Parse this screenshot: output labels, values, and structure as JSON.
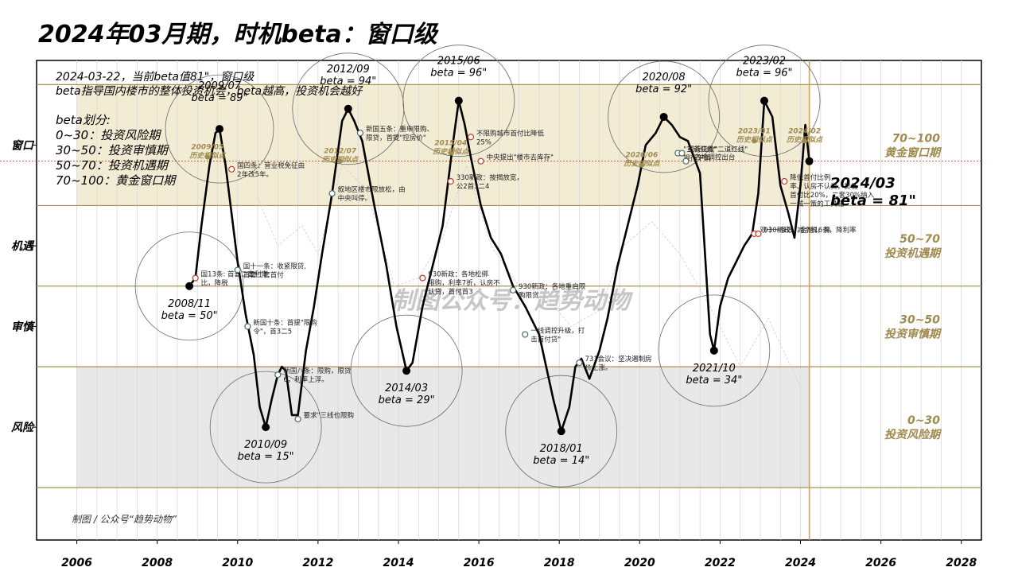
{
  "title": "2024年03月期，时机beta：窗口级",
  "chart_data": {
    "type": "line",
    "title": "2024年03月期，时机beta：窗口级",
    "xlim": [
      2005,
      2028.5
    ],
    "ylim": [
      -13,
      106
    ],
    "x_ticks": [
      "2006",
      "2008",
      "2010",
      "2012",
      "2014",
      "2016",
      "2018",
      "2020",
      "2022",
      "2024",
      "2026",
      "2028"
    ],
    "x_tick_values": [
      2006,
      2008,
      2010,
      2012,
      2014,
      2016,
      2018,
      2020,
      2022,
      2024,
      2026,
      2028
    ],
    "y_tick_labels": [
      {
        "label": "窗口",
        "value": 85
      },
      {
        "label": "机遇",
        "value": 60
      },
      {
        "label": "审慎",
        "value": 40
      },
      {
        "label": "风险",
        "value": 15
      }
    ],
    "bands": [
      {
        "from": 70,
        "to": 100,
        "label": "70~100",
        "name": "黄金窗口期",
        "color": "#f3ecd5"
      },
      {
        "from": 50,
        "to": 70,
        "label": "50~70",
        "name": "投资机遇期",
        "color": "#ffffff"
      },
      {
        "from": 30,
        "to": 50,
        "label": "30~50",
        "name": "投资审慎期",
        "color": "#ffffff"
      },
      {
        "from": 0,
        "to": 30,
        "label": "0~30",
        "name": "投资风险期",
        "color": "#e8e8e8"
      }
    ],
    "band_lines": [
      0,
      30,
      50,
      70,
      100
    ],
    "current_level": 81,
    "current_x": 2024.22,
    "info": {
      "line1": "2024-03-22，当前beta值81\"，窗口级",
      "line2": "beta指导国内楼市的整体投资机会，beta越高，投资机会越好",
      "line3": "beta划分:",
      "line4": "0~30：投资风险期",
      "line5": "30~50：投资审慎期",
      "line6": "50~70：投资机遇期",
      "line7": "70~100：黄金窗口期"
    },
    "watermark": "制图公众号：趋势动物",
    "credit": "制图 / 公众号“趋势动物”",
    "current_label": {
      "date": "2024/03",
      "beta": "beta = 81\""
    },
    "series": [
      {
        "values": [
          [
            2008.8,
            50
          ],
          [
            2008.95,
            52
          ],
          [
            2009.1,
            65
          ],
          [
            2009.3,
            80
          ],
          [
            2009.45,
            88
          ],
          [
            2009.55,
            89
          ],
          [
            2009.7,
            80
          ],
          [
            2009.85,
            68
          ],
          [
            2010.0,
            56
          ],
          [
            2010.2,
            43
          ],
          [
            2010.4,
            33
          ],
          [
            2010.55,
            20
          ],
          [
            2010.7,
            15
          ],
          [
            2010.85,
            22
          ],
          [
            2011.0,
            28
          ],
          [
            2011.1,
            30
          ],
          [
            2011.2,
            29
          ],
          [
            2011.35,
            18
          ],
          [
            2011.5,
            18
          ],
          [
            2011.7,
            34
          ],
          [
            2011.9,
            45
          ],
          [
            2012.1,
            58
          ],
          [
            2012.35,
            73
          ],
          [
            2012.6,
            91
          ],
          [
            2012.75,
            94
          ],
          [
            2012.9,
            91
          ],
          [
            2013.1,
            86
          ],
          [
            2013.4,
            70
          ],
          [
            2013.7,
            55
          ],
          [
            2013.95,
            40
          ],
          [
            2014.2,
            29
          ],
          [
            2014.35,
            31
          ],
          [
            2014.6,
            45
          ],
          [
            2014.85,
            55
          ],
          [
            2015.1,
            65
          ],
          [
            2015.35,
            85
          ],
          [
            2015.5,
            96
          ],
          [
            2015.65,
            90
          ],
          [
            2015.8,
            82
          ],
          [
            2016.05,
            70
          ],
          [
            2016.3,
            62
          ],
          [
            2016.55,
            58
          ],
          [
            2016.85,
            50
          ],
          [
            2017.15,
            45
          ],
          [
            2017.5,
            38
          ],
          [
            2017.85,
            22
          ],
          [
            2018.05,
            14
          ],
          [
            2018.25,
            20
          ],
          [
            2018.4,
            30
          ],
          [
            2018.55,
            32
          ],
          [
            2018.75,
            27
          ],
          [
            2019.0,
            34
          ],
          [
            2019.2,
            42
          ],
          [
            2019.45,
            55
          ],
          [
            2019.7,
            65
          ],
          [
            2019.95,
            75
          ],
          [
            2020.15,
            85
          ],
          [
            2020.4,
            88
          ],
          [
            2020.6,
            92
          ],
          [
            2020.8,
            90
          ],
          [
            2021.0,
            87
          ],
          [
            2021.2,
            86
          ],
          [
            2021.5,
            78
          ],
          [
            2021.75,
            38
          ],
          [
            2021.85,
            34
          ],
          [
            2022.0,
            45
          ],
          [
            2022.2,
            52
          ],
          [
            2022.45,
            57
          ],
          [
            2022.6,
            60
          ],
          [
            2022.8,
            63
          ],
          [
            2022.95,
            73
          ],
          [
            2023.1,
            96
          ],
          [
            2023.3,
            92
          ],
          [
            2023.5,
            75
          ],
          [
            2023.7,
            68
          ],
          [
            2023.85,
            62
          ],
          [
            2024.0,
            75
          ],
          [
            2024.12,
            90
          ],
          [
            2024.22,
            81
          ]
        ]
      }
    ],
    "ghost_line": [
      [
        2010.5,
        72
      ],
      [
        2011.0,
        60
      ],
      [
        2011.6,
        65
      ],
      [
        2012.0,
        58
      ],
      [
        2012.6,
        80
      ],
      [
        2013.2,
        74
      ],
      [
        2013.9,
        50
      ],
      [
        2014.5,
        52
      ],
      [
        2015.1,
        62
      ],
      [
        2015.7,
        80
      ],
      [
        2016.3,
        60
      ],
      [
        2017.0,
        50
      ],
      [
        2017.6,
        48
      ],
      [
        2018.3,
        40
      ],
      [
        2019.0,
        44
      ],
      [
        2019.6,
        60
      ],
      [
        2020.3,
        66
      ],
      [
        2021.0,
        58
      ],
      [
        2021.8,
        44
      ],
      [
        2022.5,
        30
      ],
      [
        2023.2,
        42
      ],
      [
        2024.0,
        25
      ]
    ],
    "extrema": [
      {
        "date": "2008/11",
        "beta": "beta = 50\"",
        "x": 2008.8,
        "y": 50,
        "label_dy": 26
      },
      {
        "date": "2009/07",
        "beta": "beta = 89\"",
        "x": 2009.55,
        "y": 89,
        "label_dy": -50
      },
      {
        "date": "2010/09",
        "beta": "beta = 15\"",
        "x": 2010.7,
        "y": 15,
        "label_dy": 26
      },
      {
        "date": "2012/09",
        "beta": "beta = 94\"",
        "x": 2012.75,
        "y": 94,
        "label_dy": -46
      },
      {
        "date": "2014/03",
        "beta": "beta = 29\"",
        "x": 2014.2,
        "y": 29,
        "label_dy": 26
      },
      {
        "date": "2015/06",
        "beta": "beta = 96\"",
        "x": 2015.5,
        "y": 96,
        "label_dy": -46
      },
      {
        "date": "2018/01",
        "beta": "beta = 14\"",
        "x": 2018.05,
        "y": 14,
        "label_dy": 26
      },
      {
        "date": "2020/08",
        "beta": "beta = 92\"",
        "x": 2020.6,
        "y": 92,
        "label_dy": -46
      },
      {
        "date": "2021/10",
        "beta": "beta = 34\"",
        "x": 2021.85,
        "y": 34,
        "label_dy": 26
      },
      {
        "date": "2023/02",
        "beta": "beta = 96\"",
        "x": 2023.1,
        "y": 96,
        "label_dy": -46
      }
    ],
    "circles": [
      {
        "x": 2008.8,
        "y": 50,
        "r": 68
      },
      {
        "x": 2009.55,
        "y": 89,
        "r": 68
      },
      {
        "x": 2010.7,
        "y": 15,
        "r": 70
      },
      {
        "x": 2012.75,
        "y": 94,
        "r": 70
      },
      {
        "x": 2014.2,
        "y": 29,
        "r": 70
      },
      {
        "x": 2015.5,
        "y": 96,
        "r": 70
      },
      {
        "x": 2018.05,
        "y": 14,
        "r": 70
      },
      {
        "x": 2020.6,
        "y": 92,
        "r": 70
      },
      {
        "x": 2021.85,
        "y": 34,
        "r": 70
      },
      {
        "x": 2023.1,
        "y": 96,
        "r": 70
      }
    ],
    "similar_points": [
      {
        "label": "2009/05",
        "sub": "历史相似点",
        "x": 2009.25,
        "y": 82
      },
      {
        "label": "2012/07",
        "sub": "历史相似点",
        "x": 2012.55,
        "y": 81
      },
      {
        "label": "2015/04",
        "sub": "历史相似点",
        "x": 2015.3,
        "y": 83
      },
      {
        "label": "2020/06",
        "sub": "历史相似点",
        "x": 2020.05,
        "y": 80
      },
      {
        "label": "2023/01",
        "sub": "历史相似点",
        "x": 2022.85,
        "y": 86
      },
      {
        "label": "2024/02",
        "sub": "历史相似点",
        "x": 2024.1,
        "y": 86
      }
    ],
    "policy_events": [
      {
        "x": 2008.95,
        "y": 52,
        "color": "red",
        "lines": [
          "国13条: 首套二套利率",
          "比，降税"
        ]
      },
      {
        "x": 2009.85,
        "y": 79,
        "color": "red",
        "lines": [
          "国四条：营业税免征由",
          "2年改5年。"
        ]
      },
      {
        "x": 2010.0,
        "y": 54,
        "color": "gray",
        "lines": [
          "国十一条：收紧限贷,",
          "首套二套首付"
        ]
      },
      {
        "x": 2010.25,
        "y": 40,
        "color": "gray",
        "lines": [
          "新国十条：首提\"限购",
          "令\"，首3二5"
        ]
      },
      {
        "x": 2011.0,
        "y": 28,
        "color": "gray",
        "lines": [
          "新国八条：限购，限贷",
          "6，利率上浮。"
        ]
      },
      {
        "x": 2011.5,
        "y": 17,
        "color": "gray",
        "lines": [
          "要求\"三线也限购"
        ]
      },
      {
        "x": 2012.35,
        "y": 73,
        "color": "gray",
        "lines": [
          "叙地区楼市限放松，由",
          "中央叫停。"
        ]
      },
      {
        "x": 2013.05,
        "y": 88,
        "color": "gray",
        "lines": [
          "新国五条：重申限购、",
          "限贷，首提\"控房价\""
        ]
      },
      {
        "x": 2014.6,
        "y": 52,
        "color": "red",
        "lines": [
          "930新政：各地松绑",
          "限购，利率7折，认房不",
          "认贷，首付首3"
        ]
      },
      {
        "x": 2015.3,
        "y": 76,
        "color": "red",
        "lines": [
          "330新政：按揭放宽，",
          "公2首3二4"
        ]
      },
      {
        "x": 2015.8,
        "y": 87,
        "color": "red",
        "lines": [
          "不限购城市首付比降低",
          "25%"
        ]
      },
      {
        "x": 2016.05,
        "y": 81,
        "color": "red",
        "lines": [
          "中央提出\"楼市去库存\""
        ]
      },
      {
        "x": 2016.85,
        "y": 49,
        "color": "gray",
        "lines": [
          "930新政：各地重启限",
          "购限贷"
        ]
      },
      {
        "x": 2017.15,
        "y": 38,
        "color": "gray",
        "lines": [
          "一线调控升级，打",
          "击首付贷\""
        ]
      },
      {
        "x": 2018.5,
        "y": 31,
        "color": "gray",
        "lines": [
          "731会议：坚决遏制房",
          "价上涨。"
        ]
      },
      {
        "x": 2020.95,
        "y": 83,
        "color": "gray",
        "lines": [
          "\"三道红线\"",
          "银行下调"
        ]
      },
      {
        "x": 2021.05,
        "y": 83,
        "color": "gray",
        "lines": [
          "银行贷款\"二道红线\""
        ]
      },
      {
        "x": 2021.15,
        "y": 81,
        "color": "gray",
        "lines": [
          "\"各地调控出台"
        ]
      },
      {
        "x": 2022.85,
        "y": 63,
        "color": "red",
        "lines": [
          "双十一条政：金融16条，降利率"
        ]
      },
      {
        "x": 2022.95,
        "y": 63,
        "color": "red",
        "lines": [
          "930新政：减个税，降"
        ]
      },
      {
        "x": 2023.6,
        "y": 76,
        "color": "red",
        "lines": [
          "降低首付比例，",
          "率、认房不认贷，贷低",
          "首付比20%，二套30%纳入",
          "一城一策的工具箱"
        ]
      }
    ]
  }
}
